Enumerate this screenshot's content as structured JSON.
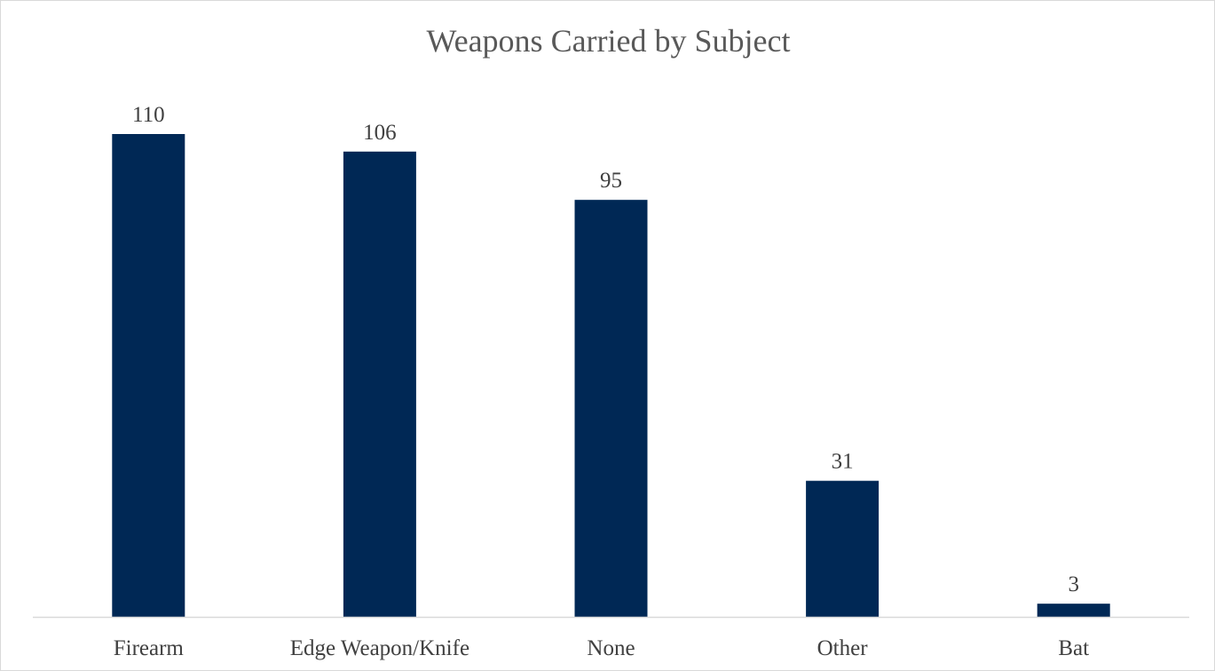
{
  "chart_data": {
    "type": "bar",
    "title": "Weapons Carried by Subject",
    "xlabel": "",
    "ylabel": "",
    "categories": [
      "Firearm",
      "Edge Weapon/Knife",
      "None",
      "Other",
      "Bat"
    ],
    "values": [
      110,
      106,
      95,
      31,
      3
    ],
    "ylim": [
      0,
      110
    ],
    "grid": false,
    "legend": "none",
    "data_labels": true,
    "colors": {
      "bar": "#002855",
      "axis": "#d9d9d9",
      "text": "#404040",
      "title": "#595959"
    }
  }
}
